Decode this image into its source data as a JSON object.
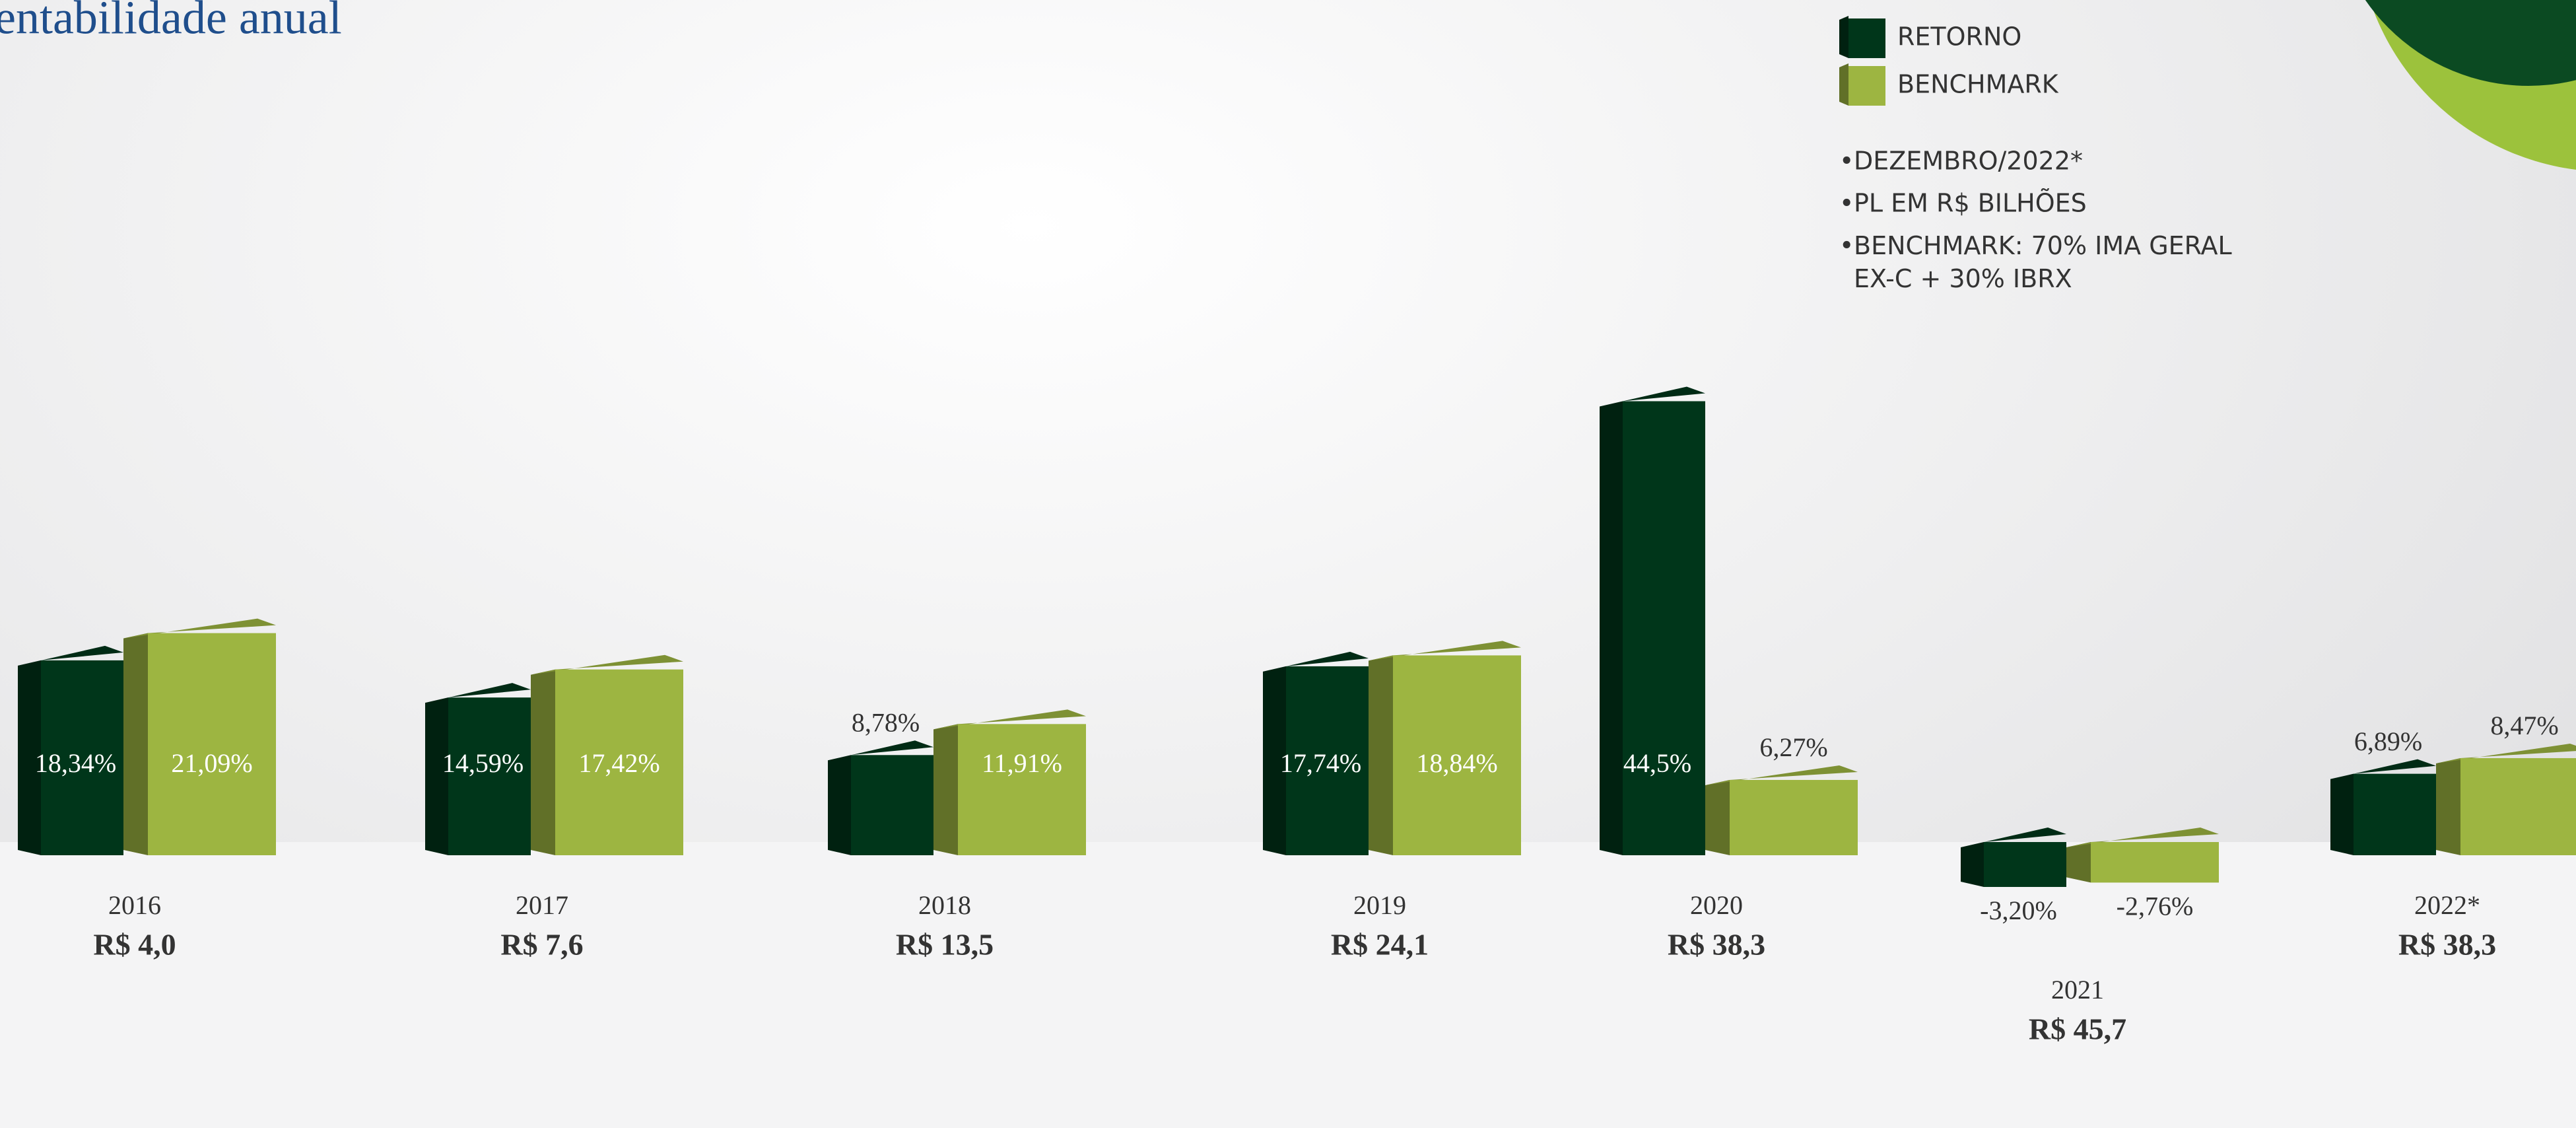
{
  "chart_data": {
    "type": "bar",
    "title": "entabilidade anual",
    "categories": [
      "2016",
      "2017",
      "2018",
      "2019",
      "2020",
      "2021",
      "2022*"
    ],
    "pl_labels": [
      "R$ 4,0",
      "R$ 7,6",
      "R$ 13,5",
      "R$ 24,1",
      "R$ 38,3",
      "R$ 45,7",
      "R$ 38,3"
    ],
    "series": [
      {
        "name": "RETORNO",
        "color": "#00361a",
        "values": [
          18.34,
          14.59,
          8.78,
          17.74,
          44.5,
          -3.2,
          6.89
        ],
        "value_labels": [
          "18,34%",
          "14,59%",
          "8,78%",
          "17,74%",
          "44,5%",
          "-3,20%",
          "6,89%"
        ]
      },
      {
        "name": "BENCHMARK",
        "color": "#9db541",
        "values": [
          21.09,
          17.42,
          11.91,
          18.84,
          6.27,
          -2.76,
          8.47
        ],
        "value_labels": [
          "21,09%",
          "17,42%",
          "11,91%",
          "18,84%",
          "6,27%",
          "-2,76%",
          "8,47%"
        ]
      }
    ],
    "notes": [
      "DEZEMBRO/2022*",
      "PL EM R$ BILHÕES",
      "BENCHMARK: 70% IMA GERAL EX-C + 30% IBRX"
    ]
  }
}
